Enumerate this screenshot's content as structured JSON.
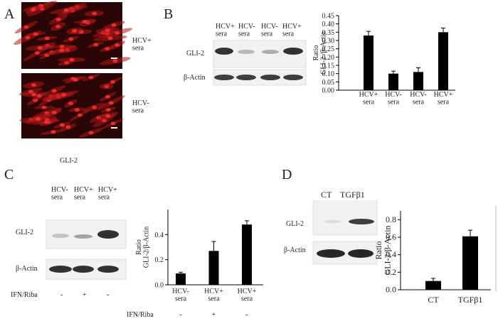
{
  "panels": {
    "A": {
      "label": "A",
      "images": [
        "HCV+\nsera",
        "HCV-\nsera"
      ],
      "caption": "GLI-2"
    },
    "B": {
      "label": "B",
      "lanes": [
        "HCV+\nsera",
        "HCV-\nsera",
        "HCV-\nsera",
        "HCV+\nsera"
      ],
      "rows": [
        "GLI-2",
        "β-Actin"
      ]
    },
    "C": {
      "label": "C",
      "lanes": [
        "HCV-\nsera",
        "HCV+\nsera",
        "HCV+\nsera"
      ],
      "rows": [
        "GLI-2",
        "β-Actin"
      ],
      "treatment": "IFN/Riba",
      "treatment_values": [
        "-",
        "+",
        "-"
      ]
    },
    "D": {
      "label": "D",
      "lanes": [
        "CT",
        "TGFβ1"
      ],
      "rows": [
        "GLI-2",
        "β-Actin"
      ]
    }
  },
  "chart_data": [
    {
      "type": "bar",
      "ylabel": "Ratio\nGLI-2 /β-Actin",
      "categories": [
        "HCV+\nsera",
        "HCV-\nsera",
        "HCV-\nsera",
        "HCV+\nsera"
      ],
      "values": [
        0.33,
        0.1,
        0.11,
        0.35
      ],
      "errors": [
        0.025,
        0.015,
        0.025,
        0.025
      ],
      "color": "#000000",
      "ylim": [
        0,
        0.45
      ],
      "yticks": [
        {
          "value": 0,
          "label": "0.00"
        },
        0.05,
        {
          "value": 0.1,
          "label": "0.10"
        },
        0.15,
        {
          "value": 0.2,
          "label": "0.20"
        },
        0.25,
        {
          "value": 0.3,
          "label": "0.30"
        },
        0.35,
        {
          "value": 0.4,
          "label": "0.40"
        },
        0.45
      ]
    },
    {
      "type": "bar",
      "ylabel": "Ratio\nGLI-2/β-Actin",
      "categories": [
        "HCV-\nsera",
        "HCV+\nsera",
        "HCV+\nsera"
      ],
      "values": [
        0.09,
        0.27,
        0.48
      ],
      "errors": [
        0.01,
        0.075,
        0.03
      ],
      "color": "#000000",
      "ylim": [
        0,
        0.6
      ],
      "yticks": [
        {
          "value": 0,
          "label": "0.0"
        },
        0.2,
        0.4
      ]
    },
    {
      "type": "bar",
      "ylabel": "Ratio\nGLI-2/β-Actin",
      "categories": [
        "CT",
        "TGFβ1"
      ],
      "values": [
        0.1,
        0.61
      ],
      "errors": [
        0.03,
        0.07
      ],
      "color": "#000000",
      "ylim": [
        0,
        0.9
      ],
      "yticks": [
        {
          "value": 0,
          "label": "0.0"
        },
        0.2,
        0.4,
        0.6,
        0.8
      ]
    }
  ]
}
